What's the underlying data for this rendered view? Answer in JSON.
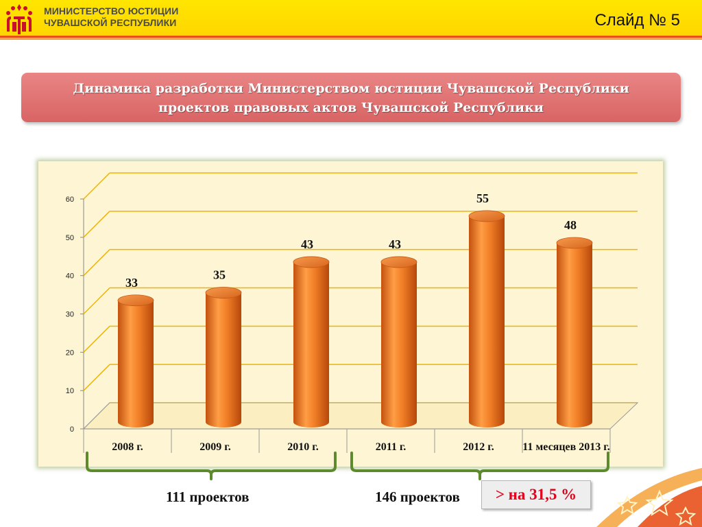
{
  "header": {
    "ministry_line1": "МИНИСТЕРСТВО ЮСТИЦИИ",
    "ministry_line2": "ЧУВАШСКОЙ РЕСПУБЛИКИ",
    "slide_label": "Слайд № 5"
  },
  "title": {
    "line1": "Динамика разработки Министерством юстиции Чувашской Республики",
    "line2": "проектов правовых актов Чувашской Республики"
  },
  "chart_data": {
    "type": "bar",
    "title": "",
    "categories": [
      "2008 г.",
      "2009 г.",
      "2010 г.",
      "2011 г.",
      "2012 г.",
      "11 месяцев 2013 г."
    ],
    "values": [
      33,
      35,
      43,
      43,
      55,
      48
    ],
    "ylim": [
      0,
      60
    ],
    "yticks": [
      0,
      10,
      20,
      30,
      40,
      50,
      60
    ],
    "grid": true,
    "legend": "none",
    "bar_style": "3d-cylinder",
    "colors": {
      "bar": "#f07e26",
      "bar_dark": "#c2520f",
      "grid": "#f0b400",
      "panel": "#fdf5d3"
    }
  },
  "summary": {
    "group1": "111 проектов",
    "group2": "146 проектов",
    "increase": "> на 31,5 %"
  },
  "colors": {
    "header": "#ffdc00",
    "title_box": "#e07373",
    "bracket": "#5e8a2e",
    "increase_text": "#e3001b"
  }
}
